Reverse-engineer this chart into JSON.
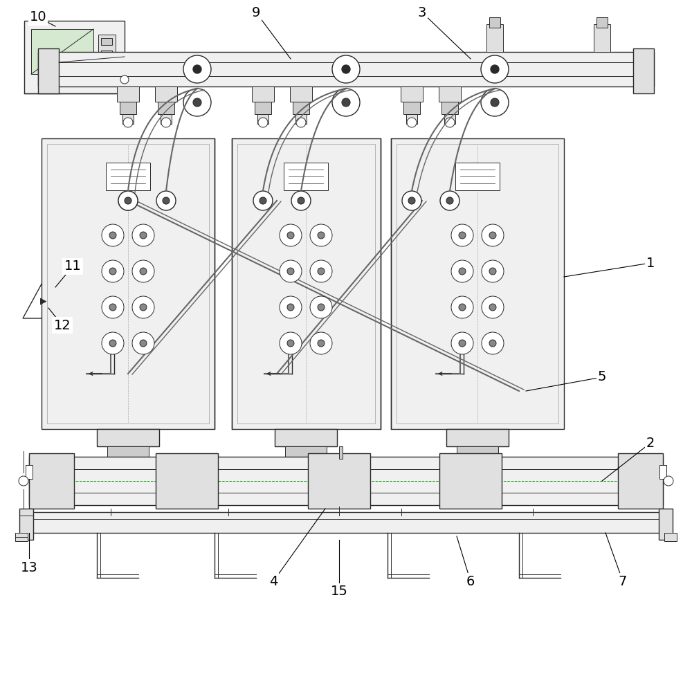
{
  "background_color": "#ffffff",
  "line_color": "#2a2a2a",
  "light_gray": "#aaaaaa",
  "fill_light": "#f0f0f0",
  "fill_medium": "#e0e0e0",
  "fill_dark": "#cccccc",
  "cable_color": "#666666",
  "dashed_color": "#009900",
  "figsize": [
    10,
    10
  ],
  "dpi": 100
}
